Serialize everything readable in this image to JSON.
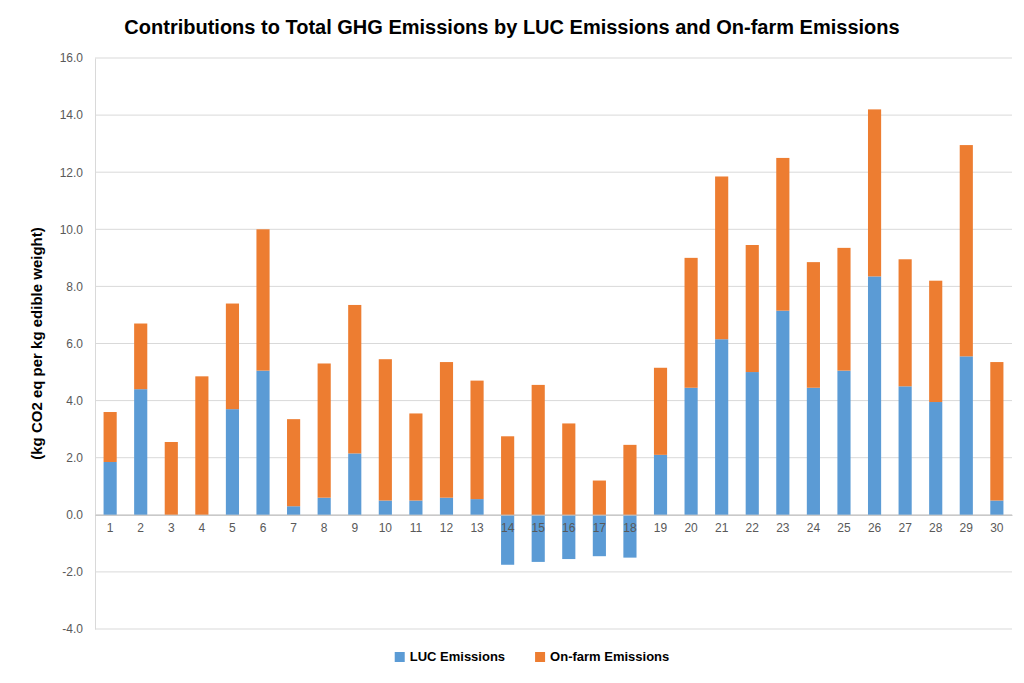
{
  "chart_data": {
    "type": "bar",
    "title": "Contributions to Total GHG Emissions by LUC Emissions and On-farm Emissions",
    "y_label": "(kg CO2 eq per kg edible weight)",
    "categories": [
      "1",
      "2",
      "3",
      "4",
      "5",
      "6",
      "7",
      "8",
      "9",
      "10",
      "11",
      "12",
      "13",
      "14",
      "15",
      "16",
      "17",
      "18",
      "19",
      "20",
      "21",
      "22",
      "23",
      "24",
      "25",
      "26",
      "27",
      "28",
      "29",
      "30"
    ],
    "series": [
      {
        "name": "LUC Emissions",
        "color": "#5b9bd5",
        "values": [
          1.85,
          4.4,
          0,
          0,
          3.7,
          5.05,
          0.3,
          0.6,
          2.15,
          0.5,
          0.5,
          0.6,
          0.55,
          -1.75,
          -1.65,
          -1.55,
          -1.45,
          -1.5,
          2.1,
          4.45,
          6.15,
          5.0,
          7.15,
          4.45,
          5.05,
          8.35,
          4.5,
          3.95,
          5.55,
          0.5
        ]
      },
      {
        "name": "On-farm Emissions",
        "color": "#ed7d31",
        "values": [
          1.75,
          2.3,
          2.55,
          4.85,
          3.7,
          4.95,
          3.05,
          4.7,
          5.2,
          4.95,
          3.05,
          4.75,
          4.15,
          2.75,
          4.55,
          3.2,
          1.2,
          2.45,
          3.05,
          4.55,
          5.7,
          4.45,
          5.35,
          4.4,
          4.3,
          5.85,
          4.45,
          4.25,
          7.4,
          4.85
        ]
      }
    ],
    "ylim": [
      -4,
      16
    ],
    "yticks": [
      {
        "value": -4,
        "label": "-4.0"
      },
      {
        "value": -2,
        "label": "-2.0"
      },
      {
        "value": 0,
        "label": "0.0"
      },
      {
        "value": 2,
        "label": "2.0"
      },
      {
        "value": 4,
        "label": "4.0"
      },
      {
        "value": 6,
        "label": "6.0"
      },
      {
        "value": 8,
        "label": "8.0"
      },
      {
        "value": 10,
        "label": "10.0"
      },
      {
        "value": 12,
        "label": "12.0"
      },
      {
        "value": 14,
        "label": "14.0"
      },
      {
        "value": 16,
        "label": "16.0"
      }
    ],
    "stacked": true,
    "grid": true,
    "legend": "bottom"
  }
}
